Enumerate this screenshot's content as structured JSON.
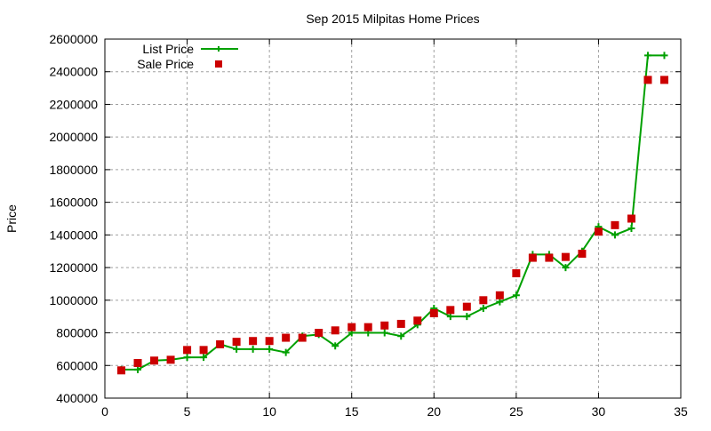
{
  "chart_data": {
    "type": "line",
    "title": "Sep 2015 Milpitas Home Prices",
    "xlabel": "",
    "ylabel": "Price",
    "xlim": [
      0,
      35
    ],
    "ylim": [
      400000,
      2600000
    ],
    "xticks": [
      "0",
      "5",
      "10",
      "15",
      "20",
      "25",
      "30",
      "35"
    ],
    "yticks": [
      "400000",
      "600000",
      "800000",
      "1000000",
      "1200000",
      "1400000",
      "1600000",
      "1800000",
      "2000000",
      "2200000",
      "2400000",
      "2600000"
    ],
    "grid": true,
    "legend_position": "top-left",
    "x": [
      1,
      2,
      3,
      4,
      5,
      6,
      7,
      8,
      9,
      10,
      11,
      12,
      13,
      14,
      15,
      16,
      17,
      18,
      19,
      20,
      21,
      22,
      23,
      24,
      25,
      26,
      27,
      28,
      29,
      30,
      31,
      32,
      33,
      34
    ],
    "series": [
      {
        "name": "List Price",
        "style": "linespoints",
        "color": "#00a000",
        "values": [
          575000,
          575000,
          630000,
          635000,
          650000,
          650000,
          730000,
          700000,
          700000,
          700000,
          680000,
          780000,
          790000,
          720000,
          800000,
          800000,
          800000,
          780000,
          850000,
          950000,
          900000,
          900000,
          950000,
          990000,
          1030000,
          1280000,
          1280000,
          1200000,
          1300000,
          1450000,
          1400000,
          1440000,
          2500000,
          2500000
        ]
      },
      {
        "name": "Sale Price",
        "style": "points",
        "color": "#cc0000",
        "values": [
          570000,
          615000,
          630000,
          635000,
          695000,
          695000,
          730000,
          745000,
          750000,
          750000,
          770000,
          770000,
          800000,
          815000,
          835000,
          835000,
          845000,
          855000,
          875000,
          920000,
          940000,
          960000,
          1000000,
          1030000,
          1165000,
          1260000,
          1260000,
          1265000,
          1285000,
          1420000,
          1460000,
          1500000,
          2350000,
          2350000
        ]
      }
    ]
  }
}
